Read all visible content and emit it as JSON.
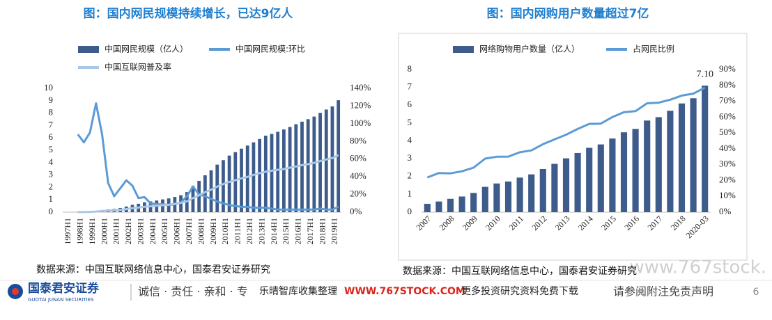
{
  "chart_data": [
    {
      "type": "bar",
      "title": "图：国内网民规模持续增长，已达9亿人",
      "categories": [
        "1997H1",
        null,
        "1998H1",
        null,
        "1999H1",
        null,
        "2000H1",
        null,
        "2001H1",
        null,
        "2002H1",
        null,
        "2003H1",
        null,
        "2004H1",
        null,
        "2005H1",
        null,
        "2006H1",
        null,
        "2007H1",
        null,
        "2008H1",
        null,
        "2009H1",
        null,
        "2010H1",
        null,
        "2011H1",
        null,
        "2012H1",
        null,
        "2013H1",
        null,
        "2014H1",
        null,
        "2015H1",
        null,
        "2016H1",
        null,
        "2017H1",
        null,
        "2018H1",
        null,
        "2019H1",
        null
      ],
      "series": [
        {
          "name": "中国网民规模（亿人）",
          "type": "bar",
          "color": "#3d5c8c",
          "values": [
            0.003,
            0.0062,
            0.0117,
            0.021,
            0.04,
            0.089,
            0.169,
            0.225,
            0.265,
            0.337,
            0.458,
            0.591,
            0.68,
            0.795,
            0.87,
            0.94,
            1.03,
            1.11,
            1.23,
            1.37,
            1.62,
            2.1,
            2.53,
            2.98,
            3.38,
            3.84,
            4.2,
            4.57,
            4.85,
            5.13,
            5.38,
            5.64,
            5.91,
            6.18,
            6.32,
            6.49,
            6.68,
            6.88,
            7.1,
            7.31,
            7.51,
            7.72,
            8.02,
            8.29,
            8.54,
            9.04
          ]
        },
        {
          "name": "中国网民规模:环比",
          "type": "line",
          "axis": "y2",
          "color": "#5b9bd5",
          "values": [
            null,
            null,
            88,
            79,
            90,
            123,
            88,
            33,
            18,
            27,
            36,
            30,
            16,
            17,
            10,
            9,
            9,
            8,
            9,
            11,
            18,
            29,
            20,
            18,
            15,
            12,
            10,
            8,
            7,
            6,
            6,
            5,
            5,
            5,
            4,
            3,
            3,
            3,
            3,
            3,
            3,
            3,
            4,
            3,
            3,
            6
          ]
        },
        {
          "name": "中国互联网普及率",
          "type": "line",
          "axis": "y2",
          "color": "#a9c8e8",
          "values": [
            null,
            null,
            0.1,
            0.2,
            0.3,
            0.7,
            1.3,
            1.7,
            2.1,
            2.6,
            3.5,
            4.6,
            5.2,
            6.1,
            6.7,
            7.2,
            7.9,
            8.5,
            9.4,
            10.5,
            12.3,
            16,
            19.1,
            22.6,
            25.5,
            28.9,
            31.8,
            34.3,
            36.2,
            38.3,
            39.9,
            42.1,
            44.1,
            45.8,
            46.9,
            47.9,
            48.8,
            50.3,
            51.7,
            53.2,
            54.3,
            55.8,
            57.7,
            59.6,
            61.2,
            64.5
          ]
        }
      ],
      "ylim": [
        0,
        10
      ],
      "yticks": [
        0,
        1,
        2,
        3,
        4,
        5,
        6,
        7,
        8,
        9,
        10
      ],
      "y2lim": [
        0,
        140
      ],
      "y2ticks": [
        {
          "value": 0,
          "label": "0%"
        },
        {
          "value": 20,
          "label": "20%"
        },
        {
          "value": 40,
          "label": "40%"
        },
        {
          "value": 60,
          "label": "60%"
        },
        {
          "value": 80,
          "label": "80%"
        },
        {
          "value": 100,
          "label": "100%"
        },
        {
          "value": 120,
          "label": "120%"
        },
        {
          "value": 140,
          "label": "140%"
        }
      ],
      "source": "数据来源：中国互联网络信息中心，国泰君安证券研究"
    },
    {
      "type": "bar",
      "title": "图：国内网购用户数量超过7亿",
      "categories": [
        "2007",
        null,
        "2008",
        null,
        "2009",
        null,
        "2010",
        null,
        "2011",
        null,
        "2012",
        null,
        "2013",
        null,
        "2014",
        null,
        "2015",
        null,
        "2016",
        null,
        "2017",
        null,
        "2018",
        null,
        "2020-03"
      ],
      "series": [
        {
          "name": "网络购物用户数量（亿人）",
          "type": "bar",
          "color": "#3d5c8c",
          "values": [
            0.47,
            0.6,
            0.75,
            0.88,
            1.08,
            1.42,
            1.61,
            1.72,
            1.94,
            2.12,
            2.42,
            2.71,
            3.02,
            3.32,
            3.61,
            3.8,
            4.13,
            4.48,
            4.67,
            5.14,
            5.33,
            5.69,
            6.1,
            6.39,
            7.1
          ],
          "value_labels": [
            null,
            null,
            null,
            null,
            null,
            null,
            null,
            null,
            null,
            null,
            null,
            null,
            null,
            null,
            null,
            null,
            null,
            null,
            null,
            null,
            null,
            null,
            null,
            null,
            "7.10"
          ]
        },
        {
          "name": "占网民比例",
          "type": "line",
          "axis": "y2",
          "color": "#5b9bd5",
          "values": [
            21.9,
            24.7,
            24.5,
            25.8,
            28.1,
            33.8,
            35,
            35.1,
            37.8,
            39,
            42.9,
            45.9,
            48.9,
            52.5,
            55.7,
            55.9,
            60,
            63.1,
            63.8,
            68.7,
            69.1,
            71,
            73.6,
            74.8,
            78.6
          ]
        }
      ],
      "ylim": [
        0,
        8
      ],
      "yticks": [
        0,
        1,
        2,
        3,
        4,
        5,
        6,
        7,
        8
      ],
      "y2lim": [
        0,
        90
      ],
      "y2ticks": [
        {
          "value": 0,
          "label": "0%"
        },
        {
          "value": 10,
          "label": "10%"
        },
        {
          "value": 20,
          "label": "20%"
        },
        {
          "value": 30,
          "label": "30%"
        },
        {
          "value": 40,
          "label": "40%"
        },
        {
          "value": 50,
          "label": "50%"
        },
        {
          "value": 60,
          "label": "60%"
        },
        {
          "value": 70,
          "label": "70%"
        },
        {
          "value": 80,
          "label": "80%"
        },
        {
          "value": 90,
          "label": "90%"
        }
      ],
      "source": "数据来源：中国互联网络信息中心，国泰君安证券研究"
    }
  ],
  "footer": {
    "company": "国泰君安证券",
    "company_en": "GUOTAI JUNAN SECURITIES",
    "motto": "诚信 · 责任 · 亲和 · 专",
    "watermark_left": "乐晴智库收集整理",
    "watermark_url": "WWW.767STOCK.COM",
    "watermark_right": "更多投资研究资料免费下载",
    "disclaimer": "请参阅附注免责声明",
    "page": "6"
  },
  "watermark": "www.767stock."
}
